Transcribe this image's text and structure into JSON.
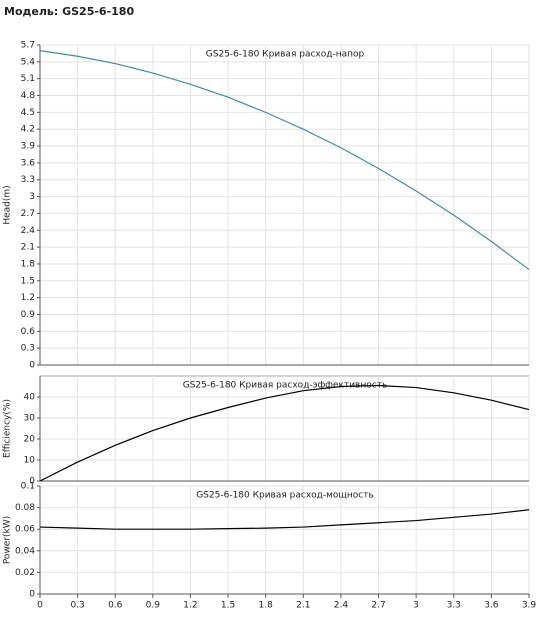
{
  "title": "Модель: GS25-6-180",
  "chart_data": [
    {
      "type": "line",
      "title": "GS25-6-180 Кривая расход-напор",
      "y_label": "Head(m)",
      "color": "#3a8fa8",
      "grid": true,
      "x": [
        0,
        0.3,
        0.6,
        0.9,
        1.2,
        1.5,
        1.8,
        2.1,
        2.4,
        2.7,
        3.0,
        3.3,
        3.6,
        3.9
      ],
      "values": [
        5.6,
        5.5,
        5.37,
        5.2,
        5.0,
        4.77,
        4.5,
        4.2,
        3.87,
        3.5,
        3.1,
        2.67,
        2.2,
        1.7
      ],
      "xlim": [
        0,
        3.9
      ],
      "ylim": [
        0,
        5.7
      ],
      "yticks": [
        0,
        0.3,
        0.6,
        0.9,
        1.2,
        1.5,
        1.8,
        2.1,
        2.4,
        2.7,
        3,
        3.3,
        3.6,
        3.9,
        4.2,
        4.5,
        4.8,
        5.1,
        5.4,
        5.7
      ]
    },
    {
      "type": "line",
      "title": "GS25-6-180 Кривая расход-эффективность",
      "y_label": "Efficiency(%)",
      "color": "#000000",
      "grid": true,
      "x": [
        0,
        0.3,
        0.6,
        0.9,
        1.2,
        1.5,
        1.8,
        2.1,
        2.4,
        2.7,
        3.0,
        3.3,
        3.6,
        3.9
      ],
      "values": [
        0,
        9,
        17,
        24,
        30,
        35,
        39.5,
        43,
        45,
        45.5,
        44.5,
        42,
        38.5,
        34
      ],
      "xlim": [
        0,
        3.9
      ],
      "ylim": [
        0,
        50
      ],
      "yticks": [
        0,
        10,
        20,
        30,
        40
      ]
    },
    {
      "type": "line",
      "title": "GS25-6-180 Кривая расход-мощность",
      "y_label": "Power(kW)",
      "color": "#000000",
      "grid": true,
      "x": [
        0,
        0.3,
        0.6,
        0.9,
        1.2,
        1.5,
        1.8,
        2.1,
        2.4,
        2.7,
        3.0,
        3.3,
        3.6,
        3.9
      ],
      "values": [
        0.062,
        0.061,
        0.06,
        0.06,
        0.06,
        0.0605,
        0.061,
        0.062,
        0.064,
        0.066,
        0.068,
        0.071,
        0.074,
        0.078
      ],
      "xlim": [
        0,
        3.9
      ],
      "ylim": [
        0,
        0.1
      ],
      "yticks": [
        0,
        0.02,
        0.04,
        0.06,
        0.08,
        0.1
      ],
      "xticks": [
        0,
        0.3,
        0.6,
        0.9,
        1.2,
        1.5,
        1.8,
        2.1,
        2.4,
        2.7,
        3,
        3.3,
        3.6,
        3.9
      ]
    }
  ]
}
